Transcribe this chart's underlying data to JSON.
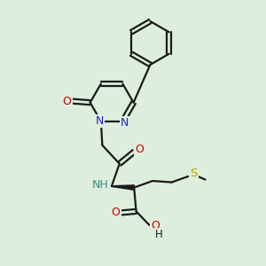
{
  "background_color": "#ddeedd",
  "line_color": "#1a1a1a",
  "bond_lw": 1.6,
  "figsize": [
    3.0,
    3.0
  ],
  "dpi": 100,
  "xlim": [
    0,
    10
  ],
  "ylim": [
    0,
    10
  ]
}
